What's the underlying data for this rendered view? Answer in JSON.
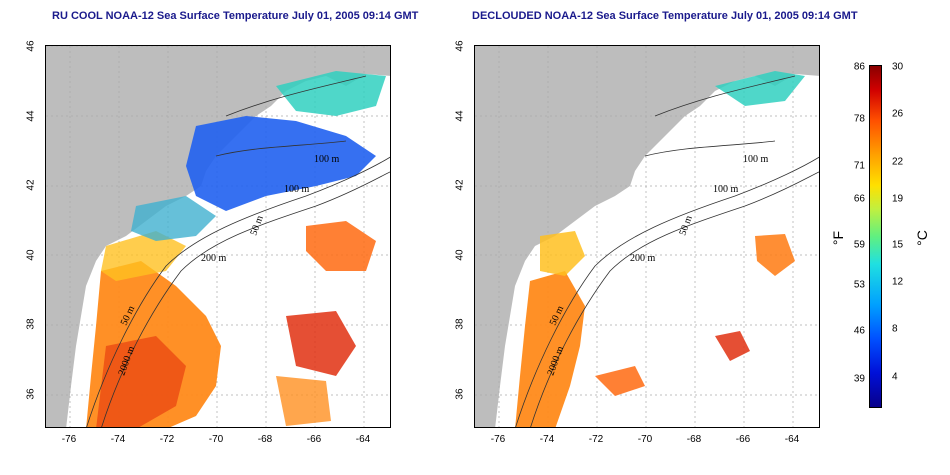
{
  "titles": {
    "left": "RU COOL NOAA-12 Sea Surface Temperature July 01, 2005 09:14 GMT",
    "right": "DECLOUDED NOAA-12 Sea Surface Temperature July 01, 2005 09:14 GMT"
  },
  "axes": {
    "x_ticks": [
      "-76",
      "-74",
      "-72",
      "-70",
      "-68",
      "-66",
      "-64"
    ],
    "y_ticks": [
      "46",
      "44",
      "42",
      "40",
      "38",
      "36"
    ]
  },
  "contour_labels": {
    "left": [
      "100 m",
      "100 m",
      "50 m",
      "200 m",
      "50 m",
      "2000 m"
    ],
    "right": [
      "100 m",
      "100 m",
      "50 m",
      "200 m",
      "50 m",
      "2000 m"
    ]
  },
  "colorbar": {
    "fahrenheit_ticks": [
      "86",
      "78",
      "71",
      "66",
      "59",
      "53",
      "46",
      "39"
    ],
    "celsius_ticks": [
      "30",
      "26",
      "22",
      "19",
      "15",
      "12",
      "8",
      "4"
    ],
    "fahrenheit_unit": "°F",
    "celsius_unit": "°C"
  },
  "colors": {
    "land": "#bdbdbd",
    "title": "#1a1a8c",
    "warm": "#ff7a10",
    "cool": "#1a50e8"
  }
}
